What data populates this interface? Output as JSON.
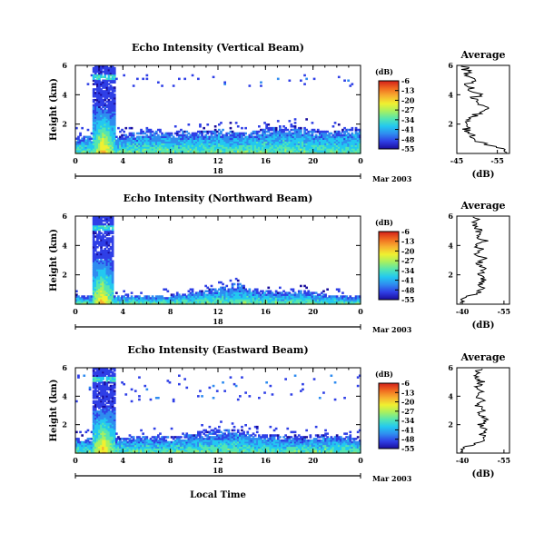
{
  "figure": {
    "xlabel": "Local Time",
    "date_label": "Mar 2003",
    "day_label": "18",
    "colorbar": {
      "unit_label": "(dB)",
      "tick_labels": [
        "-6",
        "-13",
        "-20",
        "-27",
        "-34",
        "-41",
        "-48",
        "-55"
      ],
      "range": [
        -55,
        -6
      ],
      "colors": [
        "#1a0d9c",
        "#2f3fe6",
        "#2f8cf0",
        "#23c8f0",
        "#55e6b0",
        "#a8f060",
        "#f0f030",
        "#f7b030",
        "#f06a20",
        "#d4201a"
      ]
    },
    "average_title": "Average",
    "average_xlabel": "(dB)"
  },
  "chart_data": [
    {
      "type": "heatmap",
      "title": "Echo Intensity (Vertical Beam)",
      "ylabel": "Height (km)",
      "x_ticks": [
        "0",
        "4",
        "8",
        "12",
        "16",
        "20",
        "0"
      ],
      "y_ticks": [
        "6",
        "4",
        "2"
      ],
      "xlim": [
        0,
        24
      ],
      "ylim": [
        0,
        6
      ],
      "colorbar_label": "(dB)",
      "beam": "vertical",
      "features": {
        "plume": {
          "t_start": 1.3,
          "t_end": 3.3,
          "top_km": 6.0
        },
        "layer_top_km": [
          [
            3.3,
            1.1
          ],
          [
            6,
            1.6
          ],
          [
            8,
            1.4
          ],
          [
            10,
            1.5
          ],
          [
            12,
            1.6
          ],
          [
            14,
            1.4
          ],
          [
            16,
            1.7
          ],
          [
            18,
            1.9
          ],
          [
            20,
            1.6
          ],
          [
            22,
            1.5
          ],
          [
            24,
            1.8
          ]
        ],
        "scattered_echo_km": [
          4.5,
          5.4
        ]
      },
      "average_profile": {
        "x_ticks": [
          "-45",
          "-55"
        ],
        "xlim": [
          -45,
          -58
        ],
        "y_ticks": [
          "6",
          "4",
          "2"
        ],
        "height_km": [
          0.2,
          0.4,
          0.6,
          0.8,
          1.0,
          1.3,
          1.6,
          2.0,
          2.4,
          2.8,
          3.1,
          3.4,
          3.7,
          4.0,
          4.3,
          4.6,
          5.0,
          5.4,
          5.8
        ],
        "value_db": [
          -57.5,
          -55.0,
          -52.5,
          -50.5,
          -49.0,
          -48.5,
          -47.5,
          -48.0,
          -48.5,
          -50.5,
          -52.5,
          -51.0,
          -49.0,
          -50.5,
          -49.0,
          -48.0,
          -48.5,
          -47.5,
          -47.0
        ]
      }
    },
    {
      "type": "heatmap",
      "title": "Echo Intensity (Northward Beam)",
      "ylabel": "Height (km)",
      "x_ticks": [
        "0",
        "4",
        "8",
        "12",
        "16",
        "20",
        "0"
      ],
      "y_ticks": [
        "6",
        "4",
        "2"
      ],
      "xlim": [
        0,
        24
      ],
      "ylim": [
        0,
        6
      ],
      "colorbar_label": "(dB)",
      "beam": "northward",
      "features": {
        "plume": {
          "t_start": 1.3,
          "t_end": 3.1,
          "top_km": 6.0
        },
        "layer_top_km": [
          [
            3.3,
            0.5
          ],
          [
            8,
            0.6
          ],
          [
            10,
            0.8
          ],
          [
            12,
            1.1
          ],
          [
            13.5,
            1.4
          ],
          [
            15,
            1.0
          ],
          [
            17,
            0.8
          ],
          [
            19,
            0.9
          ],
          [
            21,
            0.6
          ],
          [
            24,
            0.5
          ]
        ],
        "scattered_echo_km": []
      },
      "average_profile": {
        "x_ticks": [
          "-40",
          "-55"
        ],
        "xlim": [
          -38,
          -57
        ],
        "y_ticks": [
          "6",
          "4",
          "2"
        ],
        "height_km": [
          0.2,
          0.4,
          0.6,
          0.8,
          1.0,
          1.3,
          1.6,
          2.0,
          2.4,
          2.8,
          3.1,
          3.4,
          3.7,
          4.0,
          4.3,
          4.6,
          5.0,
          5.4,
          5.8
        ],
        "value_db": [
          -39.5,
          -41.0,
          -43.0,
          -45.5,
          -47.5,
          -46.0,
          -48.0,
          -46.5,
          -47.5,
          -46.0,
          -48.0,
          -45.5,
          -47.0,
          -44.5,
          -49.0,
          -45.0,
          -46.0,
          -44.5,
          -45.0
        ]
      }
    },
    {
      "type": "heatmap",
      "title": "Echo Intensity (Eastward Beam)",
      "ylabel": "Height (km)",
      "x_ticks": [
        "0",
        "4",
        "8",
        "12",
        "16",
        "20",
        "0"
      ],
      "y_ticks": [
        "6",
        "4",
        "2"
      ],
      "xlim": [
        0,
        24
      ],
      "ylim": [
        0,
        6
      ],
      "colorbar_label": "(dB)",
      "beam": "eastward",
      "features": {
        "plume": {
          "t_start": 1.3,
          "t_end": 3.3,
          "top_km": 6.0
        },
        "layer_top_km": [
          [
            3.3,
            1.0
          ],
          [
            6,
            1.2
          ],
          [
            8,
            1.1
          ],
          [
            10,
            1.3
          ],
          [
            12,
            1.6
          ],
          [
            13.5,
            1.7
          ],
          [
            15,
            1.3
          ],
          [
            17,
            1.2
          ],
          [
            19,
            1.1
          ],
          [
            21,
            1.3
          ],
          [
            24,
            1.0
          ]
        ],
        "scattered_echo_km": [
          3.5,
          5.5
        ]
      },
      "average_profile": {
        "x_ticks": [
          "-40",
          "-55"
        ],
        "xlim": [
          -38,
          -57
        ],
        "y_ticks": [
          "6",
          "4",
          "2"
        ],
        "height_km": [
          0.2,
          0.4,
          0.6,
          0.8,
          1.0,
          1.3,
          1.6,
          2.0,
          2.4,
          2.8,
          3.1,
          3.4,
          3.7,
          4.0,
          4.3,
          4.6,
          5.0,
          5.4,
          5.8
        ],
        "value_db": [
          -39.5,
          -41.5,
          -44.0,
          -46.5,
          -48.0,
          -47.0,
          -49.0,
          -46.5,
          -48.5,
          -46.0,
          -48.0,
          -45.0,
          -47.5,
          -44.0,
          -48.0,
          -45.5,
          -47.0,
          -45.0,
          -46.0
        ]
      }
    }
  ]
}
